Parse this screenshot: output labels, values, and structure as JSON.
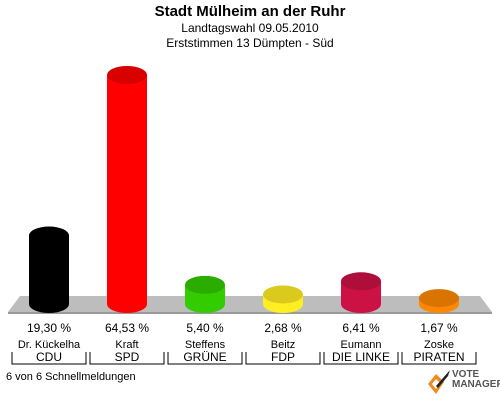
{
  "header": {
    "title": "Stadt Mülheim an der Ruhr",
    "subtitle": "Landtagswahl 09.05.2010",
    "subtitle2": "Erststimmen 13 Dümpten - Süd"
  },
  "footer": {
    "status": "6 von 6 Schnellmeldungen",
    "logo_text": "VOTE MANAGER"
  },
  "chart_data": {
    "type": "bar",
    "categories": [
      "CDU",
      "SPD",
      "GRÜNE",
      "FDP",
      "DIE LINKE",
      "PIRATEN"
    ],
    "candidates": [
      "Dr. Kückelha",
      "Kraft",
      "Steffens",
      "Beitz",
      "Eumann",
      "Zoske"
    ],
    "values": [
      19.3,
      64.53,
      5.4,
      2.68,
      6.41,
      1.67
    ],
    "value_labels": [
      "19,30 %",
      "64,53 %",
      "5,40 %",
      "2,68 %",
      "6,41 %",
      "1,67 %"
    ],
    "colors": [
      "#000000",
      "#ff0000",
      "#33cc00",
      "#ffee22",
      "#cc1144",
      "#ff8800"
    ],
    "ylim": [
      0,
      70
    ]
  }
}
